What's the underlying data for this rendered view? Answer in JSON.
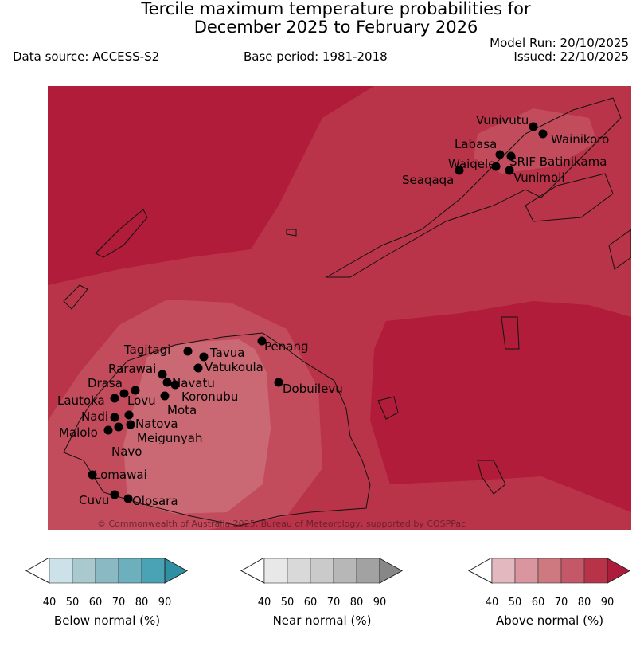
{
  "title": "Tercile maximum temperature probabilities for\nDecember 2025 to February 2026",
  "title_line1": "Tercile maximum temperature probabilities for",
  "title_line2": "December 2025 to February 2026",
  "data_source": "Data source: ACCESS-S2",
  "base_period": "Base period: 1981-2018",
  "model_run": "Model Run: 20/10/2025",
  "issued": "Issued: 22/10/2025",
  "copyright": "© Commonwealth of Australia 2025, Bureau of Meteorology, supported by COSPPac",
  "stations": [
    "Vunivutu",
    "Wainikoro",
    "Labasa",
    "SRIF Batinikama",
    "Waiqele",
    "Seaqaqa",
    "Vunimoli",
    "Tagitagi",
    "Tavua",
    "Penang",
    "Vatukoula",
    "Rarawai",
    "Navatu",
    "Koronubu",
    "Drasa",
    "Lautoka",
    "Lovu",
    "Mota",
    "Dobuilevu",
    "Natova",
    "Nadi",
    "Meigunyah",
    "Malolo",
    "Navo",
    "Lomawai",
    "Cuvu",
    "Olosara"
  ],
  "colorbars": [
    {
      "label": "Below normal (%)",
      "ticks": [
        "40",
        "50",
        "60",
        "70",
        "80",
        "90"
      ],
      "colors": [
        "#cce2e8",
        "#a9c9cf",
        "#8ab9c4",
        "#6cafbd",
        "#4aa3b4",
        "#2f8fa3"
      ]
    },
    {
      "label": "Near normal (%)",
      "ticks": [
        "40",
        "50",
        "60",
        "70",
        "80",
        "90"
      ],
      "colors": [
        "#e8e8e8",
        "#d9d9d9",
        "#cacaca",
        "#b7b7b7",
        "#a2a2a2",
        "#878787"
      ]
    },
    {
      "label": "Above normal (%)",
      "ticks": [
        "40",
        "50",
        "60",
        "70",
        "80",
        "90"
      ],
      "colors": [
        "#e3b9bf",
        "#d9969e",
        "#ce7880",
        "#c45868",
        "#b83348",
        "#ad1c3b"
      ]
    }
  ],
  "map_colors": {
    "p90": "#b01c3a",
    "p80": "#ba3449",
    "p70": "#c24c5c",
    "p60": "#ca6873"
  }
}
